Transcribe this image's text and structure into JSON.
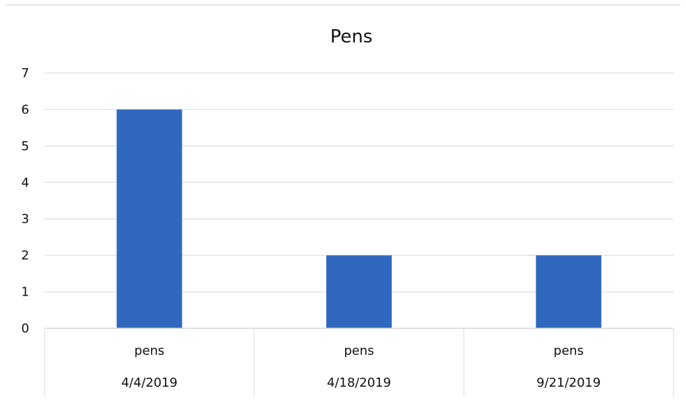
{
  "chart_data": {
    "type": "bar",
    "title": "Pens",
    "categories": [
      {
        "label": "pens",
        "date": "4/4/2019"
      },
      {
        "label": "pens",
        "date": "4/18/2019"
      },
      {
        "label": "pens",
        "date": "9/21/2019"
      }
    ],
    "series": [
      {
        "values": [
          6,
          2,
          2
        ],
        "color": "#2F68BE"
      }
    ],
    "xlabel": "",
    "ylabel": "",
    "ylim": [
      0,
      7
    ],
    "yticks": [
      "0",
      "1",
      "2",
      "3",
      "4",
      "5",
      "6",
      "7"
    ],
    "grid": true,
    "gridColor": "#E3E3E3",
    "legend": "none"
  }
}
